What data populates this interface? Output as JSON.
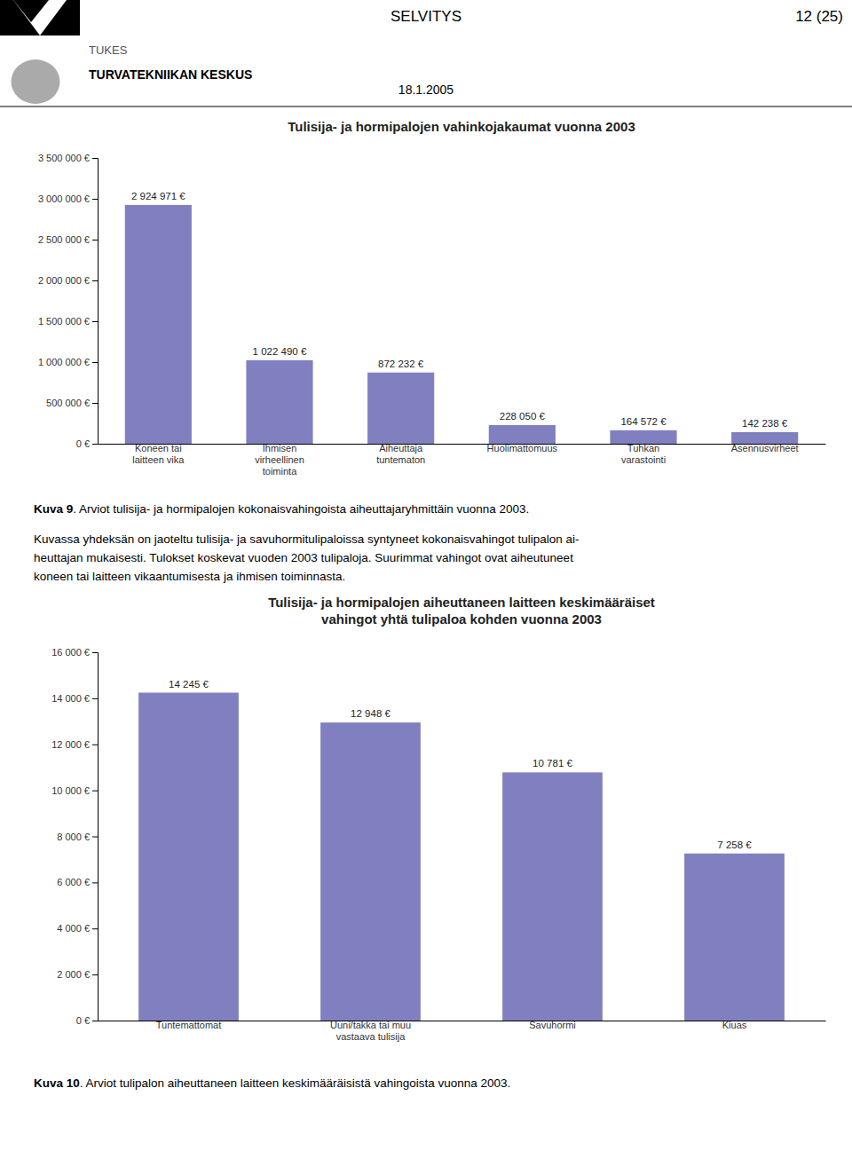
{
  "page": {
    "header_center": "SELVITYS",
    "header_right": "12 (25)",
    "header_tukes": "TUKES",
    "header_tukes2": "TURVATEKNIIKAN KESKUS",
    "date": "18.1.2005",
    "captions": [
      {
        "bold": "Kuva 9",
        "text": ". Arviot tulisija- ja hormipalojen kokonaisvahingoista aiheuttajaryhmittäin vuonna 2003."
      },
      {
        "bold": "Kuva 10",
        "text": ". Arviot tulipalon aiheuttaneen laitteen keskimääräisistä vahingoista vuonna 2003."
      }
    ],
    "paragraph": [
      "Kuvassa yhdeksän on jaoteltu tulisija- ja savuhormitulipaloissa syntyneet kokonaisvahingot tulipalon ai-",
      "heuttajan mukaisesti. Tulokset koskevat vuoden 2003 tulipaloja. Suurimmat vahingot ovat aiheutuneet",
      "koneen tai laitteen vikaantumisesta ja ihmisen toiminnasta."
    ]
  },
  "chart_data": [
    {
      "type": "bar",
      "title": "Tulisija- ja hormipalojen vahinkojakaumat vuonna 2003",
      "categories": [
        "Koneen tai\nlaitteen vika",
        "Ihmisen\nvirheellinen\ntoiminta",
        "Aiheuttaja\ntuntematon",
        "Huolimattomuus",
        "Tuhkan\nvarastointi",
        "Asennusvirheet"
      ],
      "values": [
        2924971,
        1022490,
        872232,
        228050,
        164572,
        142238
      ],
      "value_labels": [
        "2 924 971 €",
        "1 022 490 €",
        "872 232 €",
        "228 050 €",
        "164 572 €",
        "142 238 €"
      ],
      "data_labels": true,
      "color": "#8080c0",
      "ylim": [
        0,
        3500000
      ],
      "yticks": [
        {
          "value": 0,
          "label": "0 €"
        },
        {
          "value": 500000,
          "label": "500 000 €"
        },
        {
          "value": 1000000,
          "label": "1 000 000 €"
        },
        {
          "value": 1500000,
          "label": "1 500 000 €"
        },
        {
          "value": 2000000,
          "label": "2 000 000 €"
        },
        {
          "value": 2500000,
          "label": "2 500 000 €"
        },
        {
          "value": 3000000,
          "label": "3 000 000 €"
        },
        {
          "value": 3500000,
          "label": "3 500 000 €"
        }
      ],
      "grid": false
    },
    {
      "type": "bar",
      "title": "Tulisija- ja hormipalojen aiheuttaneen laitteen keskimääräiset\nvahingot yhtä tulipaloa kohden vuonna 2003",
      "categories": [
        "Tuntemattomat",
        "Uuni/takka tai muu\nvastaava tulisija",
        "Savuhormi",
        "Kiuas"
      ],
      "values": [
        14245,
        12948,
        10781,
        7258
      ],
      "value_labels": [
        "14 245 €",
        "12 948 €",
        "10 781 €",
        "7 258 €"
      ],
      "data_labels": true,
      "color": "#8080c0",
      "ylim": [
        0,
        16000
      ],
      "yticks": [
        {
          "value": 0,
          "label": "0 €"
        },
        {
          "value": 2000,
          "label": "2 000 €"
        },
        {
          "value": 4000,
          "label": "4 000 €"
        },
        {
          "value": 6000,
          "label": "6 000 €"
        },
        {
          "value": 8000,
          "label": "8 000 €"
        },
        {
          "value": 10000,
          "label": "10 000 €"
        },
        {
          "value": 12000,
          "label": "12 000 €"
        },
        {
          "value": 14000,
          "label": "14 000 €"
        },
        {
          "value": 16000,
          "label": "16 000 €"
        }
      ],
      "grid": false
    }
  ]
}
